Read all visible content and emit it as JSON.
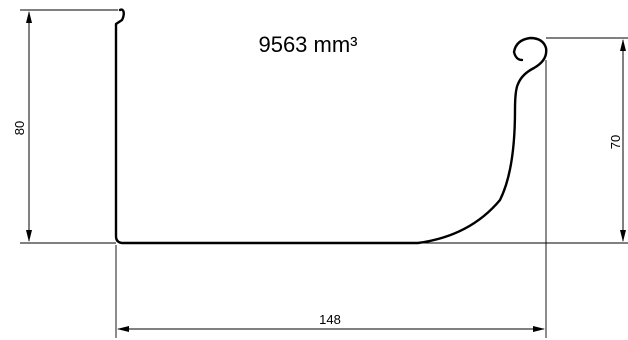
{
  "drawing": {
    "area_label": "9563 mm³",
    "dimensions": {
      "height_left": "80",
      "height_right": "70",
      "width_bottom": "148"
    }
  }
}
